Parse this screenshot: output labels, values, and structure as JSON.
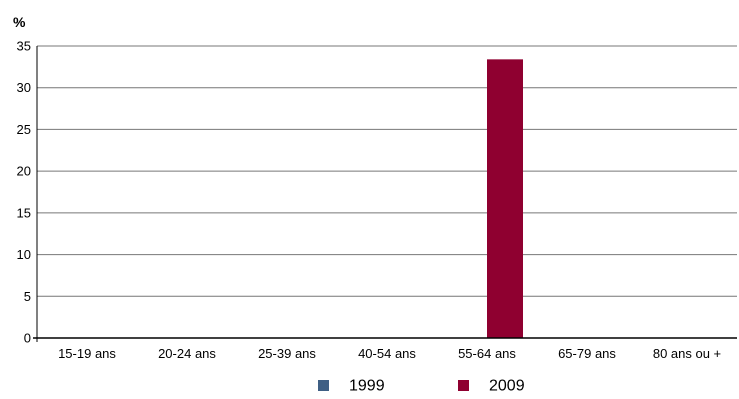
{
  "chart_data": {
    "type": "bar",
    "unit_label": "%",
    "categories": [
      "15-19 ans",
      "20-24 ans",
      "25-39 ans",
      "40-54 ans",
      "55-64 ans",
      "65-79 ans",
      "80 ans ou +"
    ],
    "series": [
      {
        "name": "1999",
        "color": "#3f5f84",
        "values": [
          0,
          0,
          0,
          0,
          0,
          0,
          0
        ]
      },
      {
        "name": "2009",
        "color": "#8f0030",
        "values": [
          0,
          0,
          0,
          0,
          33.4,
          0,
          0
        ]
      }
    ],
    "ylim": [
      0,
      35
    ],
    "yticks": [
      0,
      5,
      10,
      15,
      20,
      25,
      30,
      35
    ],
    "grid": true,
    "legend_position": "bottom-center"
  }
}
